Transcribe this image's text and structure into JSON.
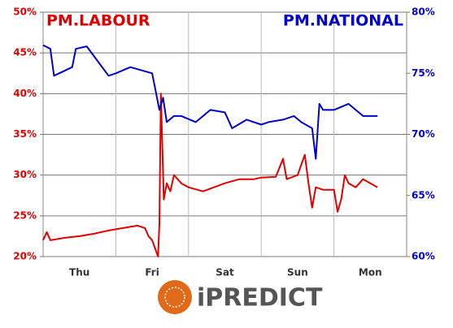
{
  "chart_data": {
    "type": "line",
    "categories": [
      "Thu",
      "Fri",
      "Sat",
      "Sun",
      "Mon"
    ],
    "xlim": [
      0,
      5
    ],
    "ylim": [
      20,
      50
    ],
    "yticks": [
      {
        "value": 20,
        "label": "20%"
      },
      {
        "value": 25,
        "label": "25%"
      },
      {
        "value": 30,
        "label": "30%"
      },
      {
        "value": 35,
        "label": "35%"
      },
      {
        "value": 40,
        "label": "40%"
      },
      {
        "value": 45,
        "label": "45%"
      },
      {
        "value": 50,
        "label": "50%"
      }
    ],
    "y2lim": [
      60,
      80
    ],
    "y2ticks": [
      {
        "value": 60,
        "label": "60%"
      },
      {
        "value": 65,
        "label": "65%"
      },
      {
        "value": 70,
        "label": "70%"
      },
      {
        "value": 75,
        "label": "75%"
      },
      {
        "value": 80,
        "label": "80%"
      }
    ],
    "grid": true,
    "series": [
      {
        "name": "PM.LABOUR",
        "color": "#e00000",
        "axis": "y",
        "x": [
          0,
          0.05,
          0.1,
          0.3,
          0.5,
          0.7,
          0.9,
          1.1,
          1.3,
          1.4,
          1.45,
          1.5,
          1.58,
          1.6,
          1.62,
          1.66,
          1.7,
          1.75,
          1.8,
          1.9,
          2.0,
          2.2,
          2.5,
          2.7,
          2.9,
          3.0,
          3.2,
          3.3,
          3.35,
          3.5,
          3.6,
          3.65,
          3.7,
          3.75,
          3.85,
          4.0,
          4.05,
          4.1,
          4.15,
          4.2,
          4.3,
          4.4,
          4.6
        ],
        "values": [
          22,
          23,
          22,
          22.3,
          22.5,
          22.8,
          23.2,
          23.5,
          23.8,
          23.5,
          22.5,
          22,
          20,
          24,
          40,
          27,
          29,
          28,
          30,
          29,
          28.5,
          28,
          29,
          29.5,
          29.5,
          29.7,
          29.8,
          32,
          29.5,
          30,
          32.5,
          29,
          26,
          28.5,
          28.2,
          28.2,
          25.5,
          27,
          30,
          29,
          28.5,
          29.5,
          28.5
        ]
      },
      {
        "name": "PM.NATIONAL",
        "color": "#0000cc",
        "axis": "y2",
        "x": [
          0,
          0.1,
          0.15,
          0.4,
          0.45,
          0.6,
          0.9,
          1.0,
          1.2,
          1.5,
          1.6,
          1.65,
          1.7,
          1.8,
          1.9,
          2.1,
          2.3,
          2.5,
          2.6,
          2.8,
          3.0,
          3.1,
          3.3,
          3.45,
          3.55,
          3.7,
          3.75,
          3.8,
          3.85,
          4.0,
          4.2,
          4.4,
          4.6
        ],
        "values": [
          77.3,
          77,
          74.8,
          75.5,
          77,
          77.2,
          74.8,
          75,
          75.5,
          75,
          72,
          73,
          71,
          71.5,
          71.5,
          71,
          72,
          71.8,
          70.5,
          71.2,
          70.8,
          71,
          71.2,
          71.5,
          71,
          70.5,
          68,
          72.5,
          72,
          72,
          72.5,
          71.5,
          71.5
        ]
      }
    ]
  },
  "logo": "iPREDICT"
}
